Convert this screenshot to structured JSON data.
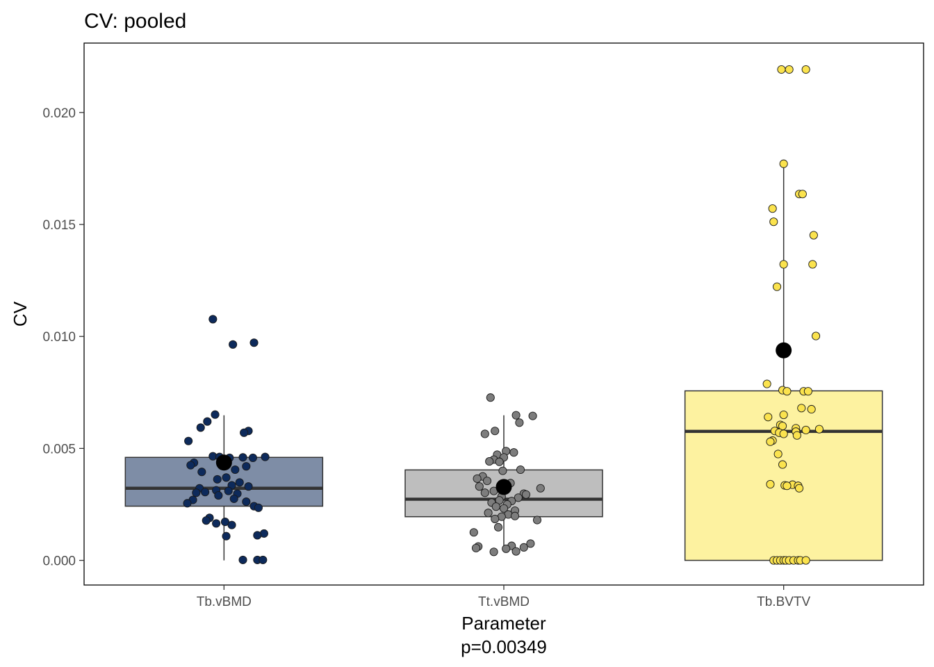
{
  "chart_data": {
    "type": "box",
    "title": "CV: pooled",
    "xlabel": "Parameter",
    "subtitle_below_x": "p=0.00349",
    "ylabel": "CV",
    "ylim": [
      -0.0011,
      0.0231
    ],
    "yticks": [
      0.0,
      0.005,
      0.01,
      0.015,
      0.02
    ],
    "ytick_labels": [
      "0.000",
      "0.005",
      "0.010",
      "0.015",
      "0.020"
    ],
    "categories": [
      "Tb.vBMD",
      "Tt.vBMD",
      "Tb.BVTV"
    ],
    "colors": {
      "Tb.vBMD": {
        "fill": "#7e8da6",
        "point": "#0d2a5b"
      },
      "Tt.vBMD": {
        "fill": "#bebebe",
        "point": "#7d7d7d"
      },
      "Tb.BVTV": {
        "fill": "#fdf2a0",
        "point": "#fbe34e"
      }
    },
    "boxes": [
      {
        "category": "Tb.vBMD",
        "whisker_low": 0.0,
        "q1": 0.00242,
        "median": 0.00322,
        "q3": 0.0046,
        "whisker_high": 0.00648,
        "mean": 0.00437
      },
      {
        "category": "Tt.vBMD",
        "whisker_low": 0.00055,
        "q1": 0.00195,
        "median": 0.00273,
        "q3": 0.00404,
        "whisker_high": 0.00648,
        "mean": 0.00328
      },
      {
        "category": "Tb.BVTV",
        "whisker_low": 0.0,
        "q1": 0.0,
        "median": 0.00576,
        "q3": 0.00757,
        "whisker_high": 0.0177,
        "mean": 0.00938
      }
    ],
    "points": [
      {
        "category": "Tb.vBMD",
        "values": [
          {
            "y": 0.01077,
            "j": -0.1
          },
          {
            "y": 0.00964,
            "j": 0.08
          },
          {
            "y": 0.00972,
            "j": 0.27
          },
          {
            "y": 0.00651,
            "j": -0.08
          },
          {
            "y": 0.0062,
            "j": -0.15
          },
          {
            "y": 0.00593,
            "j": -0.21
          },
          {
            "y": 0.00578,
            "j": 0.22
          },
          {
            "y": 0.0057,
            "j": 0.18
          },
          {
            "y": 0.00533,
            "j": -0.32
          },
          {
            "y": 0.00465,
            "j": -0.1
          },
          {
            "y": 0.00462,
            "j": -0.04
          },
          {
            "y": 0.00458,
            "j": 0.05
          },
          {
            "y": 0.0046,
            "j": 0.17
          },
          {
            "y": 0.00458,
            "j": 0.26
          },
          {
            "y": 0.00462,
            "j": 0.37
          },
          {
            "y": 0.00436,
            "j": -0.27
          },
          {
            "y": 0.00425,
            "j": -0.3
          },
          {
            "y": 0.0042,
            "j": 0.2
          },
          {
            "y": 0.00395,
            "j": -0.2
          },
          {
            "y": 0.00405,
            "j": 0.1
          },
          {
            "y": 0.0037,
            "j": 0.02
          },
          {
            "y": 0.00362,
            "j": -0.06
          },
          {
            "y": 0.00348,
            "j": 0.14
          },
          {
            "y": 0.00335,
            "j": 0.07
          },
          {
            "y": 0.0033,
            "j": 0.22
          },
          {
            "y": 0.00322,
            "j": -0.22
          },
          {
            "y": 0.00313,
            "j": -0.07
          },
          {
            "y": 0.0031,
            "j": 0.04
          },
          {
            "y": 0.00305,
            "j": -0.17
          },
          {
            "y": 0.00302,
            "j": -0.25
          },
          {
            "y": 0.00298,
            "j": 0.12
          },
          {
            "y": 0.0029,
            "j": -0.05
          },
          {
            "y": 0.00275,
            "j": 0.09
          },
          {
            "y": 0.0027,
            "j": -0.28
          },
          {
            "y": 0.00262,
            "j": 0.2
          },
          {
            "y": 0.00255,
            "j": -0.33
          },
          {
            "y": 0.00242,
            "j": 0.27
          },
          {
            "y": 0.00235,
            "j": 0.31
          },
          {
            "y": 0.0019,
            "j": -0.13
          },
          {
            "y": 0.00178,
            "j": -0.16
          },
          {
            "y": 0.00172,
            "j": 0.01
          },
          {
            "y": 0.00165,
            "j": -0.07
          },
          {
            "y": 0.00158,
            "j": 0.07
          },
          {
            "y": 0.0012,
            "j": 0.36
          },
          {
            "y": 0.00112,
            "j": 0.3
          },
          {
            "y": 0.00108,
            "j": 0.02
          },
          {
            "y": 2e-05,
            "j": 0.17
          },
          {
            "y": 2e-05,
            "j": 0.3
          },
          {
            "y": 2e-05,
            "j": 0.35
          }
        ]
      },
      {
        "category": "Tt.vBMD",
        "values": [
          {
            "y": 0.00727,
            "j": -0.12
          },
          {
            "y": 0.00648,
            "j": 0.11
          },
          {
            "y": 0.00645,
            "j": 0.26
          },
          {
            "y": 0.00615,
            "j": 0.14
          },
          {
            "y": 0.00578,
            "j": -0.08
          },
          {
            "y": 0.00565,
            "j": -0.17
          },
          {
            "y": 0.00488,
            "j": 0.02
          },
          {
            "y": 0.00482,
            "j": 0.09
          },
          {
            "y": 0.00472,
            "j": -0.06
          },
          {
            "y": 0.0046,
            "j": 0.0
          },
          {
            "y": 0.0045,
            "j": -0.09
          },
          {
            "y": 0.00442,
            "j": -0.13
          },
          {
            "y": 0.0044,
            "j": -0.04
          },
          {
            "y": 0.00405,
            "j": 0.15
          },
          {
            "y": 0.004,
            "j": -0.01
          },
          {
            "y": 0.00375,
            "j": -0.19
          },
          {
            "y": 0.00365,
            "j": -0.24
          },
          {
            "y": 0.00355,
            "j": -0.15
          },
          {
            "y": 0.00345,
            "j": 0.06
          },
          {
            "y": 0.0033,
            "j": -0.22
          },
          {
            "y": 0.00322,
            "j": 0.33
          },
          {
            "y": 0.0031,
            "j": -0.09
          },
          {
            "y": 0.00302,
            "j": -0.17
          },
          {
            "y": 0.00298,
            "j": 0.18
          },
          {
            "y": 0.00294,
            "j": 0.2
          },
          {
            "y": 0.00285,
            "j": -0.02
          },
          {
            "y": 0.0028,
            "j": 0.13
          },
          {
            "y": 0.00268,
            "j": -0.04
          },
          {
            "y": 0.00265,
            "j": 0.07
          },
          {
            "y": 0.00258,
            "j": -0.11
          },
          {
            "y": 0.0025,
            "j": 0.03
          },
          {
            "y": 0.0024,
            "j": -0.07
          },
          {
            "y": 0.00232,
            "j": 0.0
          },
          {
            "y": 0.00222,
            "j": 0.1
          },
          {
            "y": 0.00212,
            "j": -0.14
          },
          {
            "y": 0.00205,
            "j": 0.04
          },
          {
            "y": 0.00198,
            "j": 0.1
          },
          {
            "y": 0.00195,
            "j": -0.02
          },
          {
            "y": 0.00185,
            "j": -0.08
          },
          {
            "y": 0.0018,
            "j": 0.3
          },
          {
            "y": 0.00148,
            "j": -0.05
          },
          {
            "y": 0.00125,
            "j": -0.27
          },
          {
            "y": 0.00075,
            "j": 0.24
          },
          {
            "y": 0.00065,
            "j": 0.07
          },
          {
            "y": 0.00062,
            "j": -0.23
          },
          {
            "y": 0.00055,
            "j": -0.25
          },
          {
            "y": 0.00058,
            "j": 0.18
          },
          {
            "y": 0.00052,
            "j": 0.02
          },
          {
            "y": 0.0004,
            "j": 0.11
          },
          {
            "y": 0.00038,
            "j": -0.09
          }
        ]
      },
      {
        "category": "Tb.BVTV",
        "values": [
          {
            "y": 0.02192,
            "j": -0.02
          },
          {
            "y": 0.02192,
            "j": 0.05
          },
          {
            "y": 0.02192,
            "j": 0.2
          },
          {
            "y": 0.01771,
            "j": 0.0
          },
          {
            "y": 0.01636,
            "j": 0.14
          },
          {
            "y": 0.01636,
            "j": 0.17
          },
          {
            "y": 0.01571,
            "j": -0.1
          },
          {
            "y": 0.01512,
            "j": -0.09
          },
          {
            "y": 0.01452,
            "j": 0.27
          },
          {
            "y": 0.01322,
            "j": 0.0
          },
          {
            "y": 0.01322,
            "j": 0.26
          },
          {
            "y": 0.01222,
            "j": -0.06
          },
          {
            "y": 0.01002,
            "j": 0.29
          },
          {
            "y": 0.00788,
            "j": -0.15
          },
          {
            "y": 0.0076,
            "j": -0.01
          },
          {
            "y": 0.00755,
            "j": 0.03
          },
          {
            "y": 0.00755,
            "j": 0.18
          },
          {
            "y": 0.00755,
            "j": 0.22
          },
          {
            "y": 0.0068,
            "j": 0.16
          },
          {
            "y": 0.00675,
            "j": 0.25
          },
          {
            "y": 0.0065,
            "j": 0.0
          },
          {
            "y": 0.0064,
            "j": -0.14
          },
          {
            "y": 0.00605,
            "j": -0.03
          },
          {
            "y": 0.006,
            "j": -0.01
          },
          {
            "y": 0.0059,
            "j": 0.11
          },
          {
            "y": 0.00586,
            "j": 0.32
          },
          {
            "y": 0.00582,
            "j": 0.2
          },
          {
            "y": 0.00578,
            "j": -0.08
          },
          {
            "y": 0.00575,
            "j": 0.11
          },
          {
            "y": 0.0057,
            "j": -0.04
          },
          {
            "y": 0.00565,
            "j": 0.0
          },
          {
            "y": 0.00558,
            "j": 0.12
          },
          {
            "y": 0.00535,
            "j": -0.1
          },
          {
            "y": 0.0053,
            "j": -0.12
          },
          {
            "y": 0.00475,
            "j": -0.05
          },
          {
            "y": 0.00428,
            "j": -0.01
          },
          {
            "y": 0.0034,
            "j": -0.12
          },
          {
            "y": 0.00338,
            "j": 0.08
          },
          {
            "y": 0.00335,
            "j": 0.01
          },
          {
            "y": 0.00333,
            "j": 0.03
          },
          {
            "y": 0.00333,
            "j": 0.13
          },
          {
            "y": 0.00322,
            "j": 0.14
          },
          {
            "y": 0.0,
            "j": -0.09
          },
          {
            "y": 0.0,
            "j": -0.06
          },
          {
            "y": 0.0,
            "j": -0.03
          },
          {
            "y": 0.0,
            "j": 0.0
          },
          {
            "y": 0.0,
            "j": 0.02
          },
          {
            "y": 0.0,
            "j": 0.05
          },
          {
            "y": 0.0,
            "j": 0.09
          },
          {
            "y": 0.0,
            "j": 0.13
          },
          {
            "y": 0.0,
            "j": 0.15
          },
          {
            "y": 0.0,
            "j": 0.2
          }
        ]
      }
    ]
  }
}
